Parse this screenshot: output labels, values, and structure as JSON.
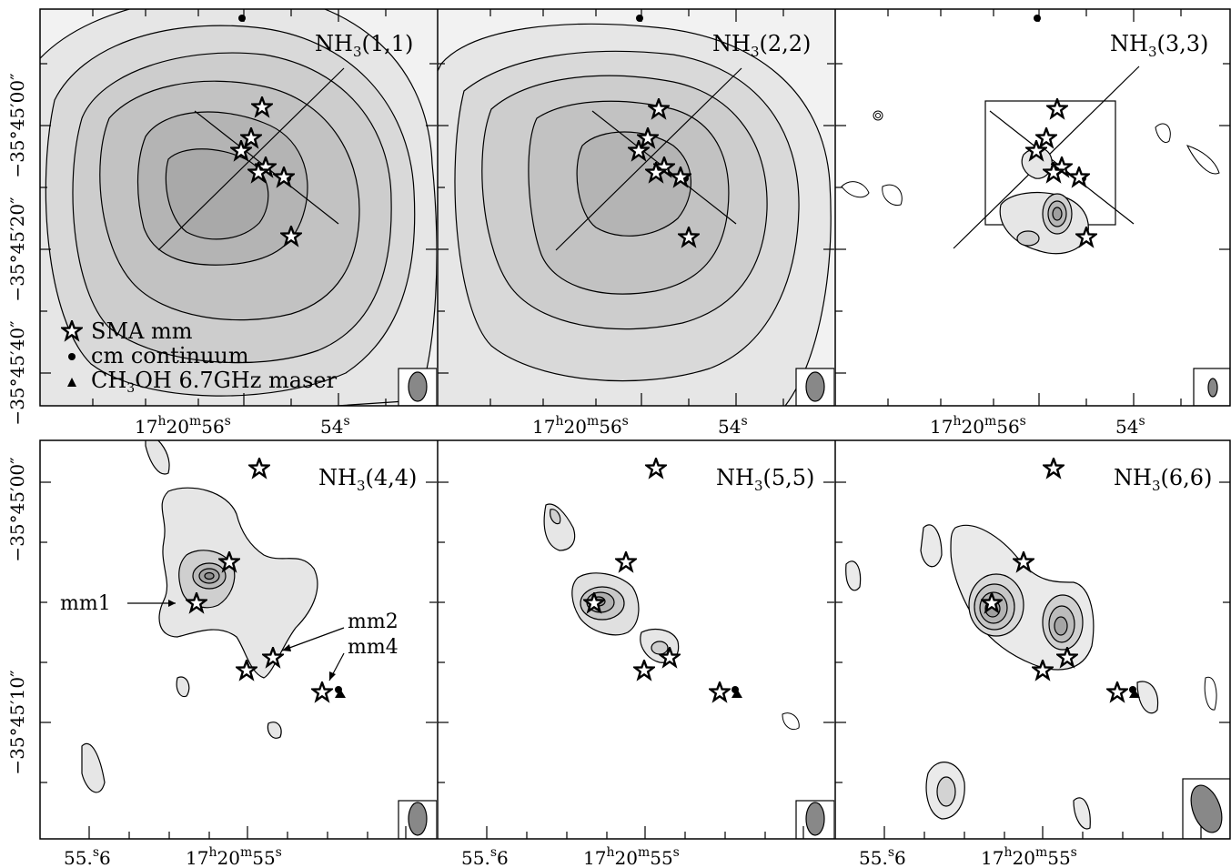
{
  "figure": {
    "panels": [
      {
        "title_base": "NH",
        "title_sub": "3",
        "title_rest": "(1,1)"
      },
      {
        "title_base": "NH",
        "title_sub": "3",
        "title_rest": "(2,2)"
      },
      {
        "title_base": "NH",
        "title_sub": "3",
        "title_rest": "(3,3)"
      },
      {
        "title_base": "NH",
        "title_sub": "3",
        "title_rest": "(4,4)"
      },
      {
        "title_base": "NH",
        "title_sub": "3",
        "title_rest": "(5,5)"
      },
      {
        "title_base": "NH",
        "title_sub": "3",
        "title_rest": "(6,6)"
      }
    ],
    "legend": {
      "star_label": "SMA mm",
      "dot_label": "cm continuum",
      "maser_label_a": "CH",
      "maser_label_sub": "3",
      "maser_label_b": "OH 6.7GHz maser"
    },
    "top_axes": {
      "y_ticks": [
        "−35°45′00″",
        "−35°45′20″",
        "−35°45′40″"
      ],
      "x_tick_main_a": "17",
      "x_tick_main_h": "h",
      "x_tick_main_b": "20",
      "x_tick_main_m": "m",
      "x_tick_main_c": "56",
      "x_tick_main_s": "s",
      "x_tick_second_a": "54",
      "x_tick_second_s": "s"
    },
    "bottom_axes": {
      "y_ticks": [
        "−35°45′00″",
        "−35°45′10″"
      ],
      "x_tick_left_a": "55.",
      "x_tick_left_s": "s",
      "x_tick_left_b": "6",
      "x_tick_main_a": "17",
      "x_tick_main_h": "h",
      "x_tick_main_b": "20",
      "x_tick_main_m": "m",
      "x_tick_main_c": "55",
      "x_tick_main_s": "s"
    },
    "annotations": {
      "mm1": "mm1",
      "mm2": "mm2",
      "mm4": "mm4"
    }
  }
}
